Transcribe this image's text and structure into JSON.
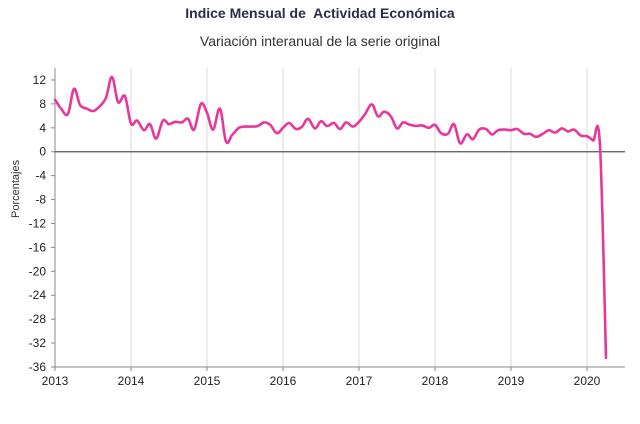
{
  "chart_data": {
    "type": "line",
    "title": "Indice Mensual de  Actividad Económica",
    "subtitle": "Variación interanual de la serie original",
    "ylabel": "Porcentajes",
    "xlabel": "",
    "ylim": [
      -36,
      14
    ],
    "yticks": [
      12,
      8,
      4,
      0,
      -4,
      -8,
      -12,
      -16,
      -20,
      -24,
      -28,
      -32,
      -36
    ],
    "xlim": [
      2013.0,
      2020.5
    ],
    "xticks": [
      {
        "value": 2013,
        "label": "2013"
      },
      {
        "value": 2014,
        "label": "2014"
      },
      {
        "value": 2015,
        "label": "2015"
      },
      {
        "value": 2016,
        "label": "2016"
      },
      {
        "value": 2017,
        "label": "2017"
      },
      {
        "value": 2018,
        "label": "2018"
      },
      {
        "value": 2019,
        "label": "2019"
      },
      {
        "value": 2020,
        "label": "2020"
      }
    ],
    "grid": "vertical",
    "line_color": "#e8379a",
    "zero_line_color": "#555555",
    "series": [
      {
        "points": [
          [
            2013.0,
            8.7
          ],
          [
            2013.08,
            7.2
          ],
          [
            2013.17,
            6.3
          ],
          [
            2013.25,
            10.5
          ],
          [
            2013.33,
            7.8
          ],
          [
            2013.42,
            7.2
          ],
          [
            2013.5,
            6.8
          ],
          [
            2013.58,
            7.5
          ],
          [
            2013.67,
            9.0
          ],
          [
            2013.75,
            12.5
          ],
          [
            2013.83,
            8.3
          ],
          [
            2013.92,
            9.3
          ],
          [
            2014.0,
            4.7
          ],
          [
            2014.08,
            5.2
          ],
          [
            2014.17,
            3.6
          ],
          [
            2014.25,
            4.6
          ],
          [
            2014.33,
            2.2
          ],
          [
            2014.42,
            5.2
          ],
          [
            2014.5,
            4.6
          ],
          [
            2014.58,
            5.0
          ],
          [
            2014.67,
            4.9
          ],
          [
            2014.75,
            5.5
          ],
          [
            2014.83,
            3.7
          ],
          [
            2014.92,
            8.0
          ],
          [
            2015.0,
            6.5
          ],
          [
            2015.08,
            3.7
          ],
          [
            2015.17,
            7.2
          ],
          [
            2015.25,
            1.7
          ],
          [
            2015.33,
            2.8
          ],
          [
            2015.42,
            4.0
          ],
          [
            2015.5,
            4.2
          ],
          [
            2015.58,
            4.2
          ],
          [
            2015.67,
            4.3
          ],
          [
            2015.75,
            4.9
          ],
          [
            2015.83,
            4.5
          ],
          [
            2015.92,
            3.1
          ],
          [
            2016.0,
            4.0
          ],
          [
            2016.08,
            4.8
          ],
          [
            2016.17,
            3.8
          ],
          [
            2016.25,
            4.2
          ],
          [
            2016.33,
            5.5
          ],
          [
            2016.42,
            3.9
          ],
          [
            2016.5,
            5.1
          ],
          [
            2016.58,
            4.3
          ],
          [
            2016.67,
            4.8
          ],
          [
            2016.75,
            3.8
          ],
          [
            2016.83,
            4.9
          ],
          [
            2016.92,
            4.2
          ],
          [
            2017.0,
            5.0
          ],
          [
            2017.08,
            6.3
          ],
          [
            2017.17,
            7.9
          ],
          [
            2017.25,
            5.9
          ],
          [
            2017.33,
            6.7
          ],
          [
            2017.42,
            5.9
          ],
          [
            2017.5,
            3.9
          ],
          [
            2017.58,
            4.9
          ],
          [
            2017.67,
            4.5
          ],
          [
            2017.75,
            4.3
          ],
          [
            2017.83,
            4.4
          ],
          [
            2017.92,
            4.0
          ],
          [
            2018.0,
            4.5
          ],
          [
            2018.08,
            3.1
          ],
          [
            2018.17,
            3.0
          ],
          [
            2018.25,
            4.6
          ],
          [
            2018.33,
            1.4
          ],
          [
            2018.42,
            2.9
          ],
          [
            2018.5,
            2.1
          ],
          [
            2018.58,
            3.7
          ],
          [
            2018.67,
            3.8
          ],
          [
            2018.75,
            2.9
          ],
          [
            2018.83,
            3.6
          ],
          [
            2018.92,
            3.7
          ],
          [
            2019.0,
            3.6
          ],
          [
            2019.08,
            3.8
          ],
          [
            2019.17,
            3.0
          ],
          [
            2019.25,
            3.0
          ],
          [
            2019.33,
            2.5
          ],
          [
            2019.42,
            3.0
          ],
          [
            2019.5,
            3.6
          ],
          [
            2019.58,
            3.2
          ],
          [
            2019.67,
            3.9
          ],
          [
            2019.75,
            3.4
          ],
          [
            2019.83,
            3.7
          ],
          [
            2019.92,
            2.7
          ],
          [
            2020.0,
            2.6
          ],
          [
            2020.08,
            1.9
          ],
          [
            2020.17,
            1.3
          ],
          [
            2020.25,
            -34.5
          ]
        ]
      }
    ]
  }
}
